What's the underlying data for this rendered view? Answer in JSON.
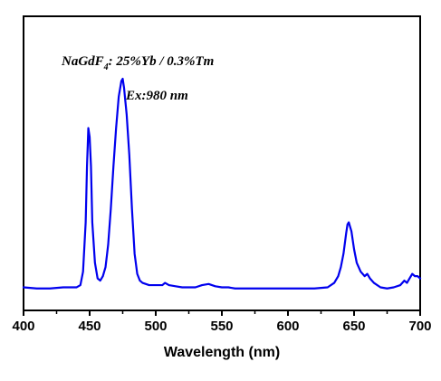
{
  "chart_data": {
    "type": "line",
    "title": "",
    "xlabel": "Wavelength (nm)",
    "ylabel": "",
    "xlim": [
      400,
      700
    ],
    "ylim": [
      0,
      1
    ],
    "x_ticks": [
      400,
      450,
      500,
      550,
      600,
      650,
      700
    ],
    "y_ticks": [],
    "grid": false,
    "legend": "none",
    "line_color": "#0000ee",
    "annotations": {
      "composition_prefix": "NaGdF",
      "composition_subscript": "4",
      "composition_suffix": ": 25%Yb / 0.3%Tm",
      "excitation": "Ex:980 nm"
    },
    "series": [
      {
        "x": [
          400,
          410,
          420,
          430,
          440,
          443,
          445,
          447,
          448,
          449,
          450,
          451,
          452,
          454,
          456,
          458,
          460,
          462,
          464,
          466,
          468,
          470,
          472,
          474,
          475,
          476,
          478,
          480,
          482,
          484,
          486,
          488,
          490,
          495,
          500,
          505,
          507,
          510,
          515,
          520,
          525,
          530,
          535,
          540,
          545,
          550,
          555,
          560,
          570,
          580,
          590,
          600,
          610,
          620,
          630,
          635,
          638,
          640,
          642,
          644,
          645,
          646,
          648,
          650,
          652,
          655,
          658,
          660,
          662,
          665,
          670,
          675,
          680,
          685,
          688,
          690,
          692,
          694,
          696,
          698,
          700
        ],
        "y": [
          0.01,
          0.005,
          0.005,
          0.01,
          0.01,
          0.02,
          0.08,
          0.3,
          0.55,
          0.72,
          0.68,
          0.55,
          0.3,
          0.12,
          0.05,
          0.04,
          0.06,
          0.1,
          0.2,
          0.36,
          0.55,
          0.72,
          0.86,
          0.93,
          0.94,
          0.9,
          0.78,
          0.6,
          0.36,
          0.16,
          0.07,
          0.04,
          0.03,
          0.02,
          0.02,
          0.02,
          0.03,
          0.02,
          0.015,
          0.01,
          0.01,
          0.01,
          0.02,
          0.025,
          0.015,
          0.01,
          0.01,
          0.005,
          0.005,
          0.005,
          0.005,
          0.005,
          0.005,
          0.005,
          0.01,
          0.03,
          0.06,
          0.1,
          0.16,
          0.25,
          0.29,
          0.3,
          0.26,
          0.18,
          0.12,
          0.08,
          0.06,
          0.07,
          0.05,
          0.03,
          0.01,
          0.005,
          0.01,
          0.02,
          0.04,
          0.03,
          0.05,
          0.07,
          0.06,
          0.06,
          0.05
        ]
      }
    ]
  }
}
